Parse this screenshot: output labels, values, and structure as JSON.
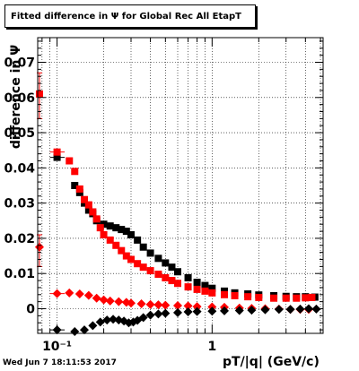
{
  "title": "Fitted difference in Ψ  for Global Rec All EtapT",
  "footer_timestamp": "Wed Jun  7 18:11:53 2017",
  "chart_data": {
    "type": "scatter",
    "title": "Fitted difference in Ψ  for Global Rec All EtapT",
    "xlabel": "pT/|q| (GeV/c)",
    "ylabel": "difference in Ψ",
    "x_scale": "log",
    "xlim": [
      0.075,
      5.2
    ],
    "ylim": [
      -0.007,
      0.077
    ],
    "grid": true,
    "y_ticks": [
      {
        "value": 0,
        "label": "0"
      },
      {
        "value": 0.01,
        "label": "0.01"
      },
      {
        "value": 0.02,
        "label": "0.02"
      },
      {
        "value": 0.03,
        "label": "0.03"
      },
      {
        "value": 0.04,
        "label": "0.04"
      },
      {
        "value": 0.05,
        "label": "0.05"
      },
      {
        "value": 0.06,
        "label": "0.06"
      },
      {
        "value": 0.07,
        "label": "0.07"
      }
    ],
    "x_ticks": [
      {
        "value": 0.1,
        "label": "10⁻¹"
      },
      {
        "value": 1,
        "label": "1"
      }
    ],
    "series": [
      {
        "color": "#000000",
        "marker": "square",
        "points": [
          [
            0.1,
            0.043
          ],
          [
            0.13,
            0.035
          ],
          [
            0.14,
            0.033
          ],
          [
            0.15,
            0.03
          ],
          [
            0.16,
            0.028
          ],
          [
            0.17,
            0.027
          ],
          [
            0.18,
            0.025
          ],
          [
            0.2,
            0.024
          ],
          [
            0.22,
            0.0235
          ],
          [
            0.24,
            0.023
          ],
          [
            0.26,
            0.0225
          ],
          [
            0.28,
            0.022
          ],
          [
            0.3,
            0.021
          ],
          [
            0.33,
            0.0195
          ],
          [
            0.36,
            0.0175
          ],
          [
            0.4,
            0.0158
          ],
          [
            0.45,
            0.0143
          ],
          [
            0.5,
            0.013
          ],
          [
            0.55,
            0.0118
          ],
          [
            0.6,
            0.0105
          ],
          [
            0.7,
            0.0088
          ],
          [
            0.8,
            0.0075
          ],
          [
            0.9,
            0.0066
          ],
          [
            1.0,
            0.0058
          ],
          [
            1.2,
            0.005
          ],
          [
            1.4,
            0.0045
          ],
          [
            1.7,
            0.0042
          ],
          [
            2.0,
            0.0039
          ],
          [
            2.5,
            0.0037
          ],
          [
            3.0,
            0.0035
          ],
          [
            3.5,
            0.0034
          ],
          [
            4.0,
            0.0034
          ],
          [
            4.6,
            0.0033
          ]
        ]
      },
      {
        "color": "#ff0000",
        "marker": "square",
        "points": [
          [
            0.077,
            0.061
          ],
          [
            0.1,
            0.0445
          ],
          [
            0.12,
            0.042
          ],
          [
            0.13,
            0.039
          ],
          [
            0.14,
            0.034
          ],
          [
            0.15,
            0.031
          ],
          [
            0.16,
            0.0295
          ],
          [
            0.17,
            0.0275
          ],
          [
            0.18,
            0.0255
          ],
          [
            0.19,
            0.023
          ],
          [
            0.2,
            0.021
          ],
          [
            0.22,
            0.0195
          ],
          [
            0.24,
            0.018
          ],
          [
            0.26,
            0.0165
          ],
          [
            0.28,
            0.015
          ],
          [
            0.3,
            0.014
          ],
          [
            0.33,
            0.0128
          ],
          [
            0.36,
            0.0118
          ],
          [
            0.4,
            0.0108
          ],
          [
            0.45,
            0.0098
          ],
          [
            0.5,
            0.0088
          ],
          [
            0.55,
            0.008
          ],
          [
            0.6,
            0.0072
          ],
          [
            0.7,
            0.0062
          ],
          [
            0.8,
            0.0055
          ],
          [
            0.9,
            0.005
          ],
          [
            1.0,
            0.0045
          ],
          [
            1.2,
            0.004
          ],
          [
            1.4,
            0.0037
          ],
          [
            1.7,
            0.0034
          ],
          [
            2.0,
            0.0032
          ],
          [
            2.5,
            0.003
          ],
          [
            3.0,
            0.003
          ],
          [
            3.5,
            0.003
          ],
          [
            4.0,
            0.0031
          ],
          [
            4.4,
            0.0032
          ]
        ]
      },
      {
        "color": "#ff0000",
        "marker": "diamond",
        "points": [
          [
            0.077,
            0.0175
          ],
          [
            0.1,
            0.0043
          ],
          [
            0.12,
            0.0045
          ],
          [
            0.14,
            0.0042
          ],
          [
            0.16,
            0.0038
          ],
          [
            0.18,
            0.003
          ],
          [
            0.2,
            0.0025
          ],
          [
            0.22,
            0.0022
          ],
          [
            0.25,
            0.002
          ],
          [
            0.28,
            0.0018
          ],
          [
            0.3,
            0.0016
          ],
          [
            0.35,
            0.0014
          ],
          [
            0.4,
            0.0012
          ],
          [
            0.45,
            0.0011
          ],
          [
            0.5,
            0.001
          ],
          [
            0.6,
            0.0009
          ],
          [
            0.7,
            0.0008
          ],
          [
            0.8,
            0.0006
          ],
          [
            1.0,
            0.0005
          ],
          [
            1.2,
            0.0004
          ],
          [
            1.5,
            0.0002
          ],
          [
            1.8,
            0.0001
          ],
          [
            2.2,
            0.0
          ],
          [
            2.7,
            -0.0001
          ],
          [
            3.2,
            -0.0002
          ],
          [
            3.7,
            -0.0002
          ],
          [
            4.2,
            -0.0002
          ]
        ]
      },
      {
        "color": "#000000",
        "marker": "diamond",
        "points": [
          [
            0.1,
            -0.006
          ],
          [
            0.13,
            -0.0065
          ],
          [
            0.15,
            -0.006
          ],
          [
            0.17,
            -0.0048
          ],
          [
            0.19,
            -0.0038
          ],
          [
            0.21,
            -0.0032
          ],
          [
            0.23,
            -0.003
          ],
          [
            0.25,
            -0.0032
          ],
          [
            0.27,
            -0.0035
          ],
          [
            0.29,
            -0.004
          ],
          [
            0.31,
            -0.0038
          ],
          [
            0.33,
            -0.0033
          ],
          [
            0.36,
            -0.0025
          ],
          [
            0.4,
            -0.0018
          ],
          [
            0.45,
            -0.0015
          ],
          [
            0.5,
            -0.0013
          ],
          [
            0.6,
            -0.0011
          ],
          [
            0.7,
            -0.0009
          ],
          [
            0.8,
            -0.0008
          ],
          [
            1.0,
            -0.0007
          ],
          [
            1.2,
            -0.0006
          ],
          [
            1.5,
            -0.0005
          ],
          [
            1.8,
            -0.0004
          ],
          [
            2.2,
            -0.0003
          ],
          [
            2.7,
            -0.0002
          ],
          [
            3.2,
            -0.0002
          ],
          [
            3.7,
            -0.0001
          ],
          [
            4.2,
            0.0
          ],
          [
            4.7,
            -0.0001
          ]
        ]
      }
    ],
    "error_bars_x": [
      {
        "x": 0.1,
        "y": 0.043,
        "xlo": 0.09,
        "xhi": 0.112,
        "color": "#000000"
      },
      {
        "x": 0.1,
        "y": 0.0445,
        "xlo": 0.09,
        "xhi": 0.112,
        "color": "#ff0000"
      },
      {
        "x": 0.1,
        "y": 0.0043,
        "xlo": 0.09,
        "xhi": 0.112,
        "color": "#ff0000"
      },
      {
        "x": 0.1,
        "y": -0.006,
        "xlo": 0.09,
        "xhi": 0.112,
        "color": "#000000"
      }
    ],
    "error_bars_y": [
      {
        "x": 0.077,
        "y": 0.061,
        "ylo": 0.054,
        "yhi": 0.067,
        "color": "#ff0000"
      },
      {
        "x": 0.077,
        "y": 0.0175,
        "ylo": 0.012,
        "yhi": 0.021,
        "color": "#ff0000"
      }
    ]
  }
}
